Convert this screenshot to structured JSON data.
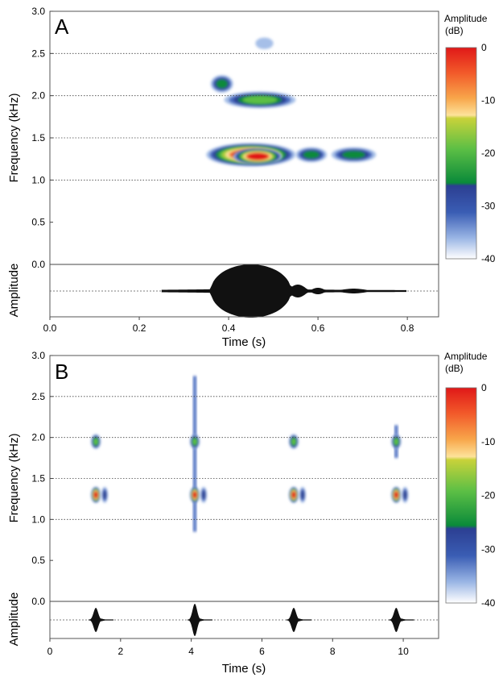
{
  "chart_data": [
    {
      "type": "heatmap",
      "panel_label": "A",
      "title": "",
      "xlabel": "Time (s)",
      "ylabel_top": "Frequency (kHz)",
      "ylabel_bottom": "Amplitude",
      "xlim": [
        0,
        0.87
      ],
      "ylim": [
        0,
        3.0
      ],
      "x_ticks": [
        0.0,
        0.2,
        0.4,
        0.6,
        0.8
      ],
      "x_tick_labels": [
        "0.0",
        "0.2",
        "0.4",
        "0.6",
        "0.8"
      ],
      "y_ticks": [
        0.0,
        0.5,
        1.0,
        1.5,
        2.0,
        2.5,
        3.0
      ],
      "y_tick_labels": [
        "0.0",
        "0.5",
        "1.0",
        "1.5",
        "2.0",
        "2.5",
        "3.0"
      ],
      "grid": "horizontal dotted lines at 1.0, 1.5, 2.0, 2.5 kHz",
      "colorbar": {
        "title_line1": "Amplitude",
        "title_line2": "(dB)",
        "range": [
          -40,
          0
        ],
        "ticks": [
          0,
          -10,
          -20,
          -30,
          -40
        ],
        "tick_labels": [
          "0",
          "-10",
          "-20",
          "-30",
          "-40"
        ]
      },
      "blobs": [
        {
          "t0": 0.35,
          "t1": 0.55,
          "f": 1.3,
          "fh": 0.2,
          "peak_db": 0
        },
        {
          "t0": 0.41,
          "t1": 0.52,
          "f": 1.28,
          "fh": 0.12,
          "peak_db": -3
        },
        {
          "t0": 0.55,
          "t1": 0.62,
          "f": 1.3,
          "fh": 0.1,
          "peak_db": -25
        },
        {
          "t0": 0.63,
          "t1": 0.73,
          "f": 1.3,
          "fh": 0.1,
          "peak_db": -24
        },
        {
          "t0": 0.39,
          "t1": 0.55,
          "f": 1.95,
          "fh": 0.12,
          "peak_db": -22
        },
        {
          "t0": 0.36,
          "t1": 0.41,
          "f": 2.14,
          "fh": 0.13,
          "peak_db": -24
        },
        {
          "t0": 0.46,
          "t1": 0.5,
          "f": 2.62,
          "fh": 0.06,
          "peak_db": -36
        }
      ],
      "waveform": {
        "center_s": 0.45,
        "halfwidth_s": 0.09,
        "tail_end_s": 0.8
      }
    },
    {
      "type": "heatmap",
      "panel_label": "B",
      "title": "",
      "xlabel": "Time (s)",
      "ylabel_top": "Frequency (kHz)",
      "ylabel_bottom": "Amplitude",
      "xlim": [
        0,
        11.0
      ],
      "ylim": [
        0,
        3.0
      ],
      "x_ticks": [
        0,
        2,
        4,
        6,
        8,
        10
      ],
      "x_tick_labels": [
        "0",
        "2",
        "4",
        "6",
        "8",
        "10"
      ],
      "y_ticks": [
        0.0,
        0.5,
        1.0,
        1.5,
        2.0,
        2.5,
        3.0
      ],
      "y_tick_labels": [
        "0.0",
        "0.5",
        "1.0",
        "1.5",
        "2.0",
        "2.5",
        "3.0"
      ],
      "grid": "horizontal dotted lines at 1.0, 1.5, 2.0, 2.5 kHz",
      "colorbar": {
        "title_line1": "Amplitude",
        "title_line2": "(dB)",
        "range": [
          -40,
          0
        ],
        "ticks": [
          0,
          -10,
          -20,
          -30,
          -40
        ],
        "tick_labels": [
          "0",
          "-10",
          "-20",
          "-30",
          "-40"
        ]
      },
      "calls_s": [
        1.3,
        4.1,
        6.9,
        9.8
      ],
      "call_components": [
        {
          "f": 1.3,
          "fh": 0.12,
          "peak_db": -3
        },
        {
          "f": 1.95,
          "fh": 0.1,
          "peak_db": -20
        }
      ],
      "vertical_streaks": [
        {
          "t": 4.1,
          "f0": 0.85,
          "f1": 2.75
        },
        {
          "t": 9.8,
          "f0": 1.75,
          "f1": 2.15
        }
      ]
    }
  ]
}
